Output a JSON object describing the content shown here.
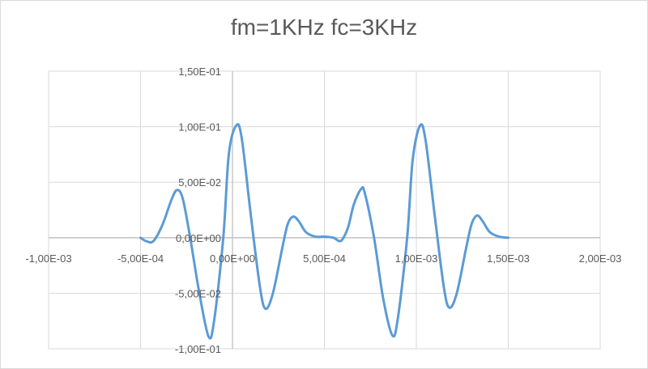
{
  "colors": {
    "series": "#5b9bd5",
    "grid": "#d9d9d9",
    "axis": "#bfbfbf",
    "text": "#595959"
  },
  "chart_data": {
    "type": "scatter",
    "title": "fm=1KHz fc=3KHz",
    "xlabel": "",
    "ylabel": "",
    "xlim": [
      -0.001,
      0.002
    ],
    "ylim": [
      -0.1,
      0.15
    ],
    "grid": true,
    "legend": "none",
    "x_ticks": [
      {
        "value": -0.001,
        "label": "-1,00E-03"
      },
      {
        "value": -0.0005,
        "label": "-5,00E-04"
      },
      {
        "value": 0,
        "label": "0,00E+00"
      },
      {
        "value": 0.0005,
        "label": "5,00E-04"
      },
      {
        "value": 0.001,
        "label": "1,00E-03"
      },
      {
        "value": 0.0015,
        "label": "1,50E-03"
      },
      {
        "value": 0.002,
        "label": "2,00E-03"
      }
    ],
    "y_ticks": [
      {
        "value": 0.15,
        "label": "1,50E-01"
      },
      {
        "value": 0.1,
        "label": "1,00E-01"
      },
      {
        "value": 0.05,
        "label": "5,00E-02"
      },
      {
        "value": 0,
        "label": "0,00E+00"
      },
      {
        "value": -0.05,
        "label": "-5,00E-02"
      },
      {
        "value": -0.1,
        "label": "-1,00E-01"
      }
    ],
    "series": [
      {
        "name": "",
        "points": [
          [
            -0.0005,
            0.0
          ],
          [
            -0.00047,
            -0.003
          ],
          [
            -0.00043,
            -0.003
          ],
          [
            -0.00038,
            0.012
          ],
          [
            -0.00033,
            0.035
          ],
          [
            -0.0003,
            0.043
          ],
          [
            -0.00027,
            0.035
          ],
          [
            -0.00023,
            0.0
          ],
          [
            -0.00018,
            -0.05
          ],
          [
            -0.00013,
            -0.089
          ],
          [
            -0.0001,
            -0.075
          ],
          [
            -5e-05,
            0.0
          ],
          [
            -2e-05,
            0.075
          ],
          [
            2e-05,
            0.101
          ],
          [
            5e-05,
            0.09
          ],
          [
            0.0001,
            0.02
          ],
          [
            0.00015,
            -0.045
          ],
          [
            0.00018,
            -0.064
          ],
          [
            0.00022,
            -0.05
          ],
          [
            0.00027,
            -0.01
          ],
          [
            0.0003,
            0.012
          ],
          [
            0.00033,
            0.019
          ],
          [
            0.00036,
            0.015
          ],
          [
            0.0004,
            0.005
          ],
          [
            0.00045,
            0.001
          ],
          [
            0.0005,
            0.001
          ],
          [
            0.00055,
            0.0
          ],
          [
            0.00058,
            -0.003
          ],
          [
            0.0006,
            -0.001
          ],
          [
            0.00063,
            0.01
          ],
          [
            0.00066,
            0.03
          ],
          [
            0.0007,
            0.044
          ],
          [
            0.00072,
            0.04
          ],
          [
            0.00077,
            0.0
          ],
          [
            0.00082,
            -0.055
          ],
          [
            0.00087,
            -0.088
          ],
          [
            0.0009,
            -0.072
          ],
          [
            0.00095,
            0.0
          ],
          [
            0.00098,
            0.07
          ],
          [
            0.00102,
            0.101
          ],
          [
            0.00105,
            0.088
          ],
          [
            0.0011,
            0.02
          ],
          [
            0.00115,
            -0.045
          ],
          [
            0.00118,
            -0.063
          ],
          [
            0.00122,
            -0.05
          ],
          [
            0.00127,
            -0.01
          ],
          [
            0.0013,
            0.012
          ],
          [
            0.00133,
            0.02
          ],
          [
            0.00136,
            0.015
          ],
          [
            0.0014,
            0.005
          ],
          [
            0.00145,
            0.001
          ],
          [
            0.0015,
            0.0
          ]
        ]
      }
    ]
  }
}
